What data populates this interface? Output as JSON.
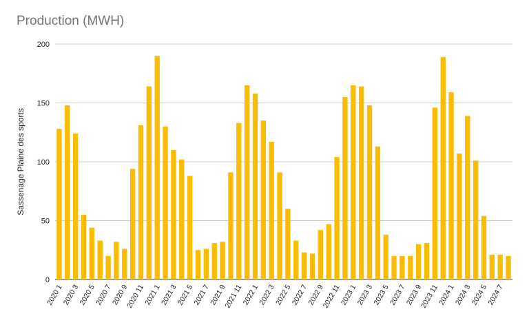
{
  "chart_data": {
    "type": "bar",
    "title": "Production (MWH)",
    "xlabel": "",
    "ylabel": "Sassenage Plaine des sports",
    "ylim": [
      0,
      200
    ],
    "yticks": [
      0,
      50,
      100,
      150,
      200
    ],
    "grid": true,
    "bar_color": "#FBBC04",
    "gridline_color": "#cccccc",
    "categories": [
      "2020 1",
      "2020 2",
      "2020 3",
      "2020 4",
      "2020 5",
      "2020 6",
      "2020 7",
      "2020 8",
      "2020 9",
      "2020 10",
      "2020 11",
      "2020 12",
      "2021 1",
      "2021 2",
      "2021 3",
      "2021 4",
      "2021 5",
      "2021 6",
      "2021 7",
      "2021 8",
      "2021 9",
      "2021 10",
      "2021 11",
      "2021 12",
      "2022 1",
      "2022 2",
      "2022 3",
      "2022 4",
      "2022 5",
      "2022 6",
      "2022 7",
      "2022 8",
      "2022 9",
      "2022 10",
      "2022 11",
      "2022 12",
      "2023 1",
      "2023 2",
      "2023 3",
      "2023 4",
      "2023 5",
      "2023 6",
      "2023 7",
      "2023 8",
      "2023 9",
      "2023 10",
      "2023 11",
      "2023 12",
      "2024 1",
      "2024 2",
      "2024 3",
      "2024 4",
      "2024 5",
      "2024 6",
      "2024 7",
      "2024 8"
    ],
    "visible_tick_labels": [
      "2020 1",
      "2020 3",
      "2020 5",
      "2020 7",
      "2020 9",
      "2020 11",
      "2021 1",
      "2021 3",
      "2021 5",
      "2021 7",
      "2021 9",
      "2021 11",
      "2022 1",
      "2022 3",
      "2022 5",
      "2022 7",
      "2022 9",
      "2022 11",
      "2023 1",
      "2023 3",
      "2023 5",
      "2023 7",
      "2023 9",
      "2023 11",
      "2024 1",
      "2024 3",
      "2024 5",
      "2024 7"
    ],
    "values": [
      128,
      148,
      124,
      55,
      44,
      33,
      20,
      32,
      26,
      94,
      131,
      164,
      190,
      130,
      110,
      102,
      88,
      25,
      26,
      31,
      32,
      91,
      133,
      165,
      158,
      135,
      117,
      91,
      60,
      33,
      23,
      22,
      42,
      47,
      104,
      155,
      165,
      164,
      148,
      113,
      38,
      20,
      20,
      20,
      30,
      31,
      146,
      189,
      159,
      107,
      139,
      101,
      54,
      21,
      21,
      20
    ]
  }
}
